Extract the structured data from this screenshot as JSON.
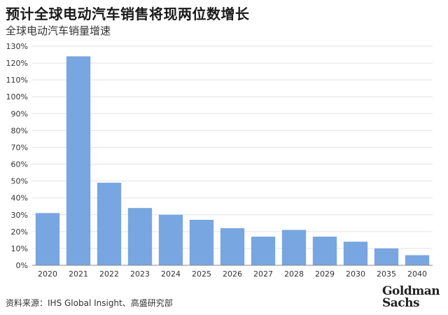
{
  "header": {
    "title": "预计全球电动汽车销售将现两位数增长",
    "subtitle": "全球电动汽车销量增速"
  },
  "footer": {
    "source": "资料来源：IHS Global Insight、高盛研究部",
    "logo_line1": "Goldman",
    "logo_line2": "Sachs"
  },
  "colors": {
    "bar": "#78a6e0",
    "grid": "#e3e3e3",
    "axis": "#888888",
    "text": "#333333"
  },
  "chart_data": {
    "type": "bar",
    "title": "全球电动汽车销量增速",
    "categories": [
      "2020",
      "2021",
      "2022",
      "2023",
      "2024",
      "2025",
      "2026",
      "2027",
      "2028",
      "2029",
      "2030",
      "2035",
      "2040"
    ],
    "values": [
      31,
      124,
      49,
      34,
      30,
      27,
      22,
      17,
      21,
      17,
      14,
      10,
      6
    ],
    "ylim": [
      0,
      130
    ],
    "yticks": [
      0,
      10,
      20,
      30,
      40,
      50,
      60,
      70,
      80,
      90,
      100,
      110,
      120,
      130
    ],
    "ytick_labels": [
      "0%",
      "10%",
      "20%",
      "30%",
      "40%",
      "50%",
      "60%",
      "70%",
      "80%",
      "90%",
      "100%",
      "110%",
      "120%",
      "130%"
    ],
    "xlabel": "",
    "ylabel": "",
    "grid": true,
    "legend": "none"
  }
}
